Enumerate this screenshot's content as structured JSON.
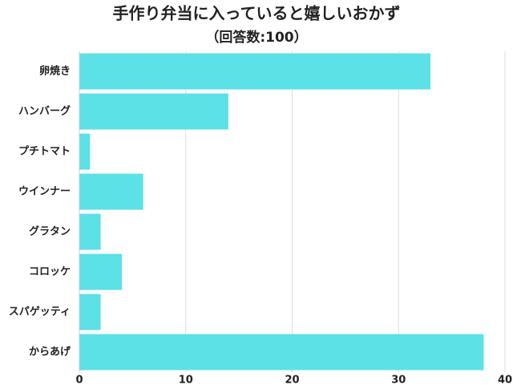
{
  "chart_data": {
    "type": "bar",
    "orientation": "horizontal",
    "title": "手作り弁当に入っていると嬉しいおかず",
    "subtitle": "（回答数:100）",
    "categories": [
      "卵焼き",
      "ハンバーグ",
      "プチトマト",
      "ウインナー",
      "グラタン",
      "コロッケ",
      "スパゲッティ",
      "からあげ"
    ],
    "values": [
      33,
      14,
      1,
      6,
      2,
      4,
      2,
      38
    ],
    "color": "#5ce1e6",
    "xlim": [
      0,
      40
    ],
    "xticks": [
      0,
      10,
      20,
      30,
      40
    ],
    "grid": true
  }
}
